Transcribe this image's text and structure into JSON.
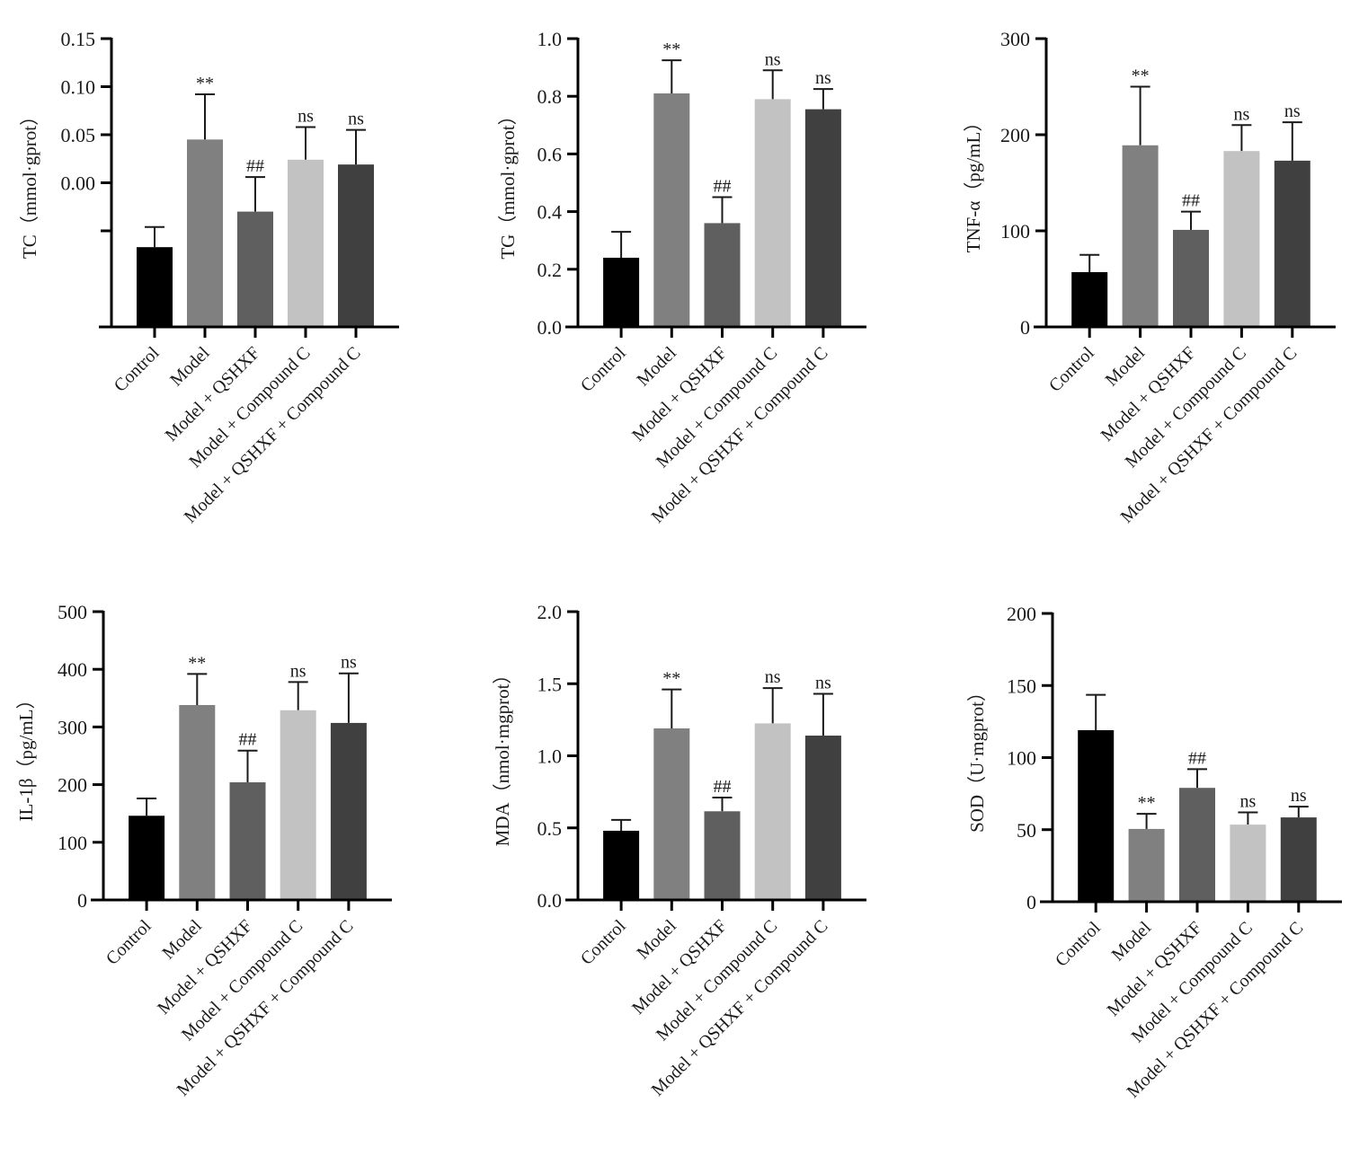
{
  "figure": {
    "groups": [
      "Control",
      "Model",
      "Model + QSHXF",
      "Model + Compound C",
      "Model + QSHXF + Compound C"
    ],
    "bar_colors": [
      "#000000",
      "#808080",
      "#5f5f5f",
      "#c2c2c2",
      "#404040"
    ],
    "axis_color": "#000000"
  },
  "chart_data": [
    {
      "type": "bar",
      "title": "",
      "ylabel": "TC（mmol·gprot）",
      "xlabel": "",
      "categories": [
        "Control",
        "Model",
        "Model + QSHXF",
        "Model + Compound C",
        "Model + QSHXF + Compound C"
      ],
      "values": [
        -0.067,
        0.045,
        -0.03,
        0.024,
        0.019
      ],
      "errors": [
        0.021,
        0.047,
        0.036,
        0.034,
        0.036
      ],
      "significance": [
        "",
        "**",
        "##",
        "ns",
        "ns"
      ],
      "ylim": [
        -0.15,
        0.15
      ],
      "yticks": [
        0.15,
        0.1,
        0.05,
        0.0,
        -0.05,
        -0.15
      ],
      "ytick_labels": [
        "0.15",
        "0.10",
        "0.05",
        "0.00",
        "",
        ""
      ],
      "grid": false
    },
    {
      "type": "bar",
      "title": "",
      "ylabel": "TG（mmol·gprot）",
      "xlabel": "",
      "categories": [
        "Control",
        "Model",
        "Model + QSHXF",
        "Model + Compound C",
        "Model + QSHXF + Compound C"
      ],
      "values": [
        0.24,
        0.81,
        0.36,
        0.79,
        0.755
      ],
      "errors": [
        0.09,
        0.115,
        0.09,
        0.1,
        0.07
      ],
      "significance": [
        "",
        "**",
        "##",
        "ns",
        "ns"
      ],
      "ylim": [
        0,
        1.0
      ],
      "yticks": [
        0.0,
        0.2,
        0.4,
        0.6,
        0.8,
        1.0
      ],
      "ytick_labels": [
        "0.0",
        "0.2",
        "0.4",
        "0.6",
        "0.8",
        "1.0"
      ],
      "grid": false
    },
    {
      "type": "bar",
      "title": "",
      "ylabel": "TNF-α（pg/mL）",
      "xlabel": "",
      "categories": [
        "Control",
        "Model",
        "Model + QSHXF",
        "Model + Compound C",
        "Model + QSHXF + Compound C"
      ],
      "values": [
        57,
        189,
        101,
        183,
        173
      ],
      "errors": [
        18,
        61,
        19,
        27,
        40
      ],
      "significance": [
        "",
        "**",
        "##",
        "ns",
        "ns"
      ],
      "ylim": [
        0,
        300
      ],
      "yticks": [
        0,
        100,
        200,
        300
      ],
      "ytick_labels": [
        "0",
        "100",
        "200",
        "300"
      ],
      "grid": false
    },
    {
      "type": "bar",
      "title": "",
      "ylabel": "IL-1β（pg/mL）",
      "xlabel": "",
      "categories": [
        "Control",
        "Model",
        "Model + QSHXF",
        "Model + Compound C",
        "Model + QSHXF + Compound C"
      ],
      "values": [
        146,
        338,
        204,
        329,
        307
      ],
      "errors": [
        30,
        54,
        55,
        49,
        86
      ],
      "significance": [
        "",
        "**",
        "##",
        "ns",
        "ns"
      ],
      "ylim": [
        0,
        500
      ],
      "yticks": [
        0,
        100,
        200,
        300,
        400,
        500
      ],
      "ytick_labels": [
        "0",
        "100",
        "200",
        "300",
        "400",
        "500"
      ],
      "grid": false
    },
    {
      "type": "bar",
      "title": "",
      "ylabel": "MDA（nmol·mgprot）",
      "xlabel": "",
      "categories": [
        "Control",
        "Model",
        "Model + QSHXF",
        "Model + Compound C",
        "Model + QSHXF + Compound C"
      ],
      "values": [
        0.48,
        1.19,
        0.615,
        1.225,
        1.14
      ],
      "errors": [
        0.075,
        0.27,
        0.095,
        0.245,
        0.29
      ],
      "significance": [
        "",
        "**",
        "##",
        "ns",
        "ns"
      ],
      "ylim": [
        0,
        2.0
      ],
      "yticks": [
        0.0,
        0.5,
        1.0,
        1.5,
        2.0
      ],
      "ytick_labels": [
        "0.0",
        "0.5",
        "1.0",
        "1.5",
        "2.0"
      ],
      "grid": false
    },
    {
      "type": "bar",
      "title": "",
      "ylabel": "SOD（U·mgprot）",
      "xlabel": "",
      "categories": [
        "Control",
        "Model",
        "Model + QSHXF",
        "Model + Compound C",
        "Model + QSHXF + Compound C"
      ],
      "values": [
        119,
        50.5,
        79,
        53.5,
        58.5
      ],
      "errors": [
        24.5,
        10.5,
        13,
        8.5,
        7.5
      ],
      "significance": [
        "",
        "**",
        "##",
        "ns",
        "ns"
      ],
      "ylim": [
        0,
        200
      ],
      "yticks": [
        0,
        50,
        100,
        150,
        200
      ],
      "ytick_labels": [
        "0",
        "50",
        "100",
        "150",
        "200"
      ],
      "grid": false
    }
  ]
}
